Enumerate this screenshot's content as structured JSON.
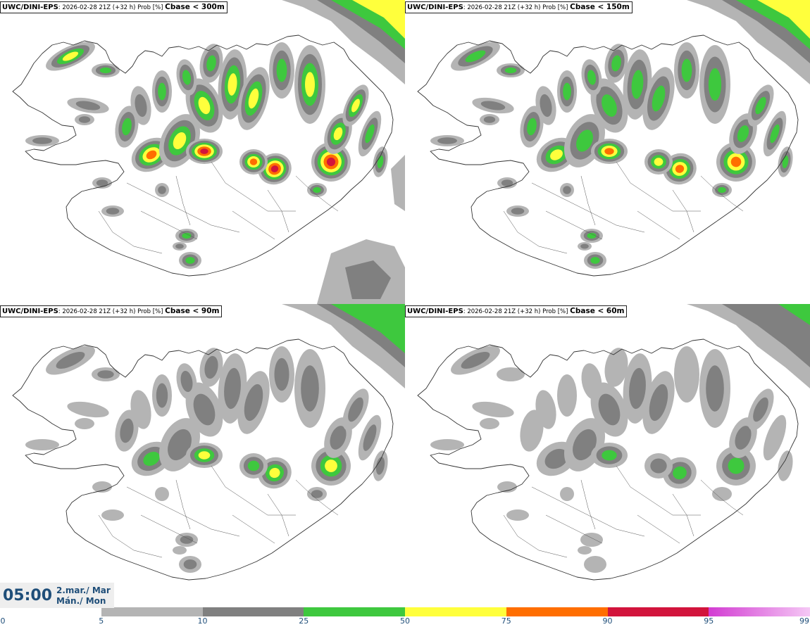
{
  "panels": [
    {
      "model": "UWC/DINI-EPS",
      "meta": ": 2026-02-28 21Z (+32 h) Prob [%] ",
      "variable": "Cbase < 300m",
      "intensity": 1.0
    },
    {
      "model": "UWC/DINI-EPS",
      "meta": ": 2026-02-28 21Z (+32 h) Prob [%] ",
      "variable": "Cbase < 150m",
      "intensity": 0.85
    },
    {
      "model": "UWC/DINI-EPS",
      "meta": ": 2026-02-28 21Z (+32 h) Prob [%] ",
      "variable": "Cbase < 90m",
      "intensity": 0.65
    },
    {
      "model": "UWC/DINI-EPS",
      "meta": ": 2026-02-28 21Z (+32 h) Prob [%] ",
      "variable": "Cbase < 60m",
      "intensity": 0.55
    }
  ],
  "valid_time": {
    "time": "05:00",
    "date_line1": "2.mar./ Mar",
    "date_line2": "Mán./ Mon"
  },
  "legend": {
    "ticks": [
      "0",
      "5",
      "10",
      "25",
      "50",
      "75",
      "90",
      "95",
      "99"
    ],
    "colors": [
      "#ffffff",
      "#b4b4b4",
      "#808080",
      "#3ec83e",
      "#ffff3c",
      "#ff6e00",
      "#d2143c",
      "#d23cd2",
      "#f5c8f5"
    ]
  }
}
